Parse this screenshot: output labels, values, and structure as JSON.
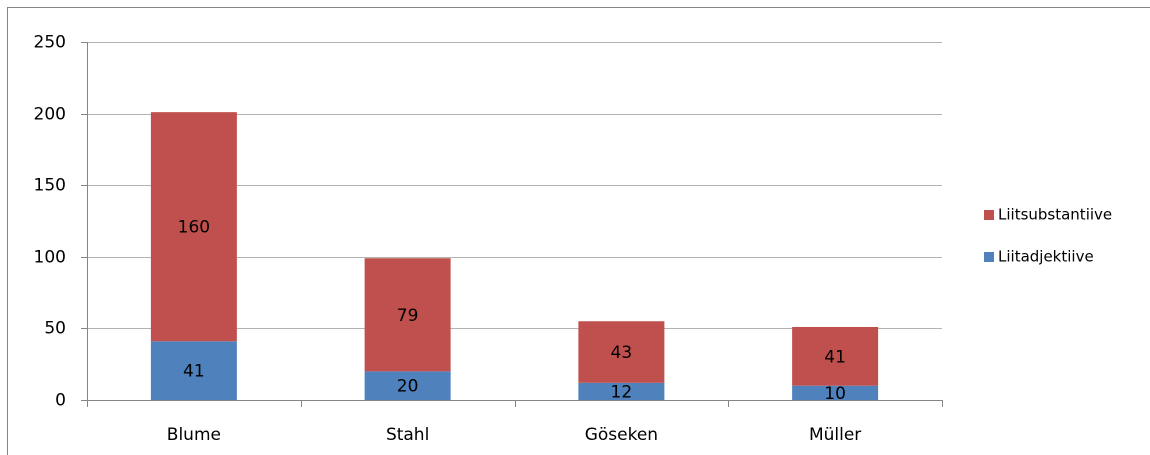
{
  "chart_data": {
    "type": "stacked_bar",
    "categories": [
      "Blume",
      "Stahl",
      "Göseken",
      "Müller"
    ],
    "series": [
      {
        "name": "Liitadjektiive",
        "color": "#4f81bd",
        "values": [
          41,
          20,
          12,
          10
        ]
      },
      {
        "name": "Liitsubstantiive",
        "color": "#c0504d",
        "values": [
          160,
          79,
          43,
          41
        ]
      }
    ],
    "ylim": [
      0,
      250
    ],
    "yticks": [
      0,
      50,
      100,
      150,
      200,
      250
    ],
    "grid": true,
    "legend": "right"
  }
}
